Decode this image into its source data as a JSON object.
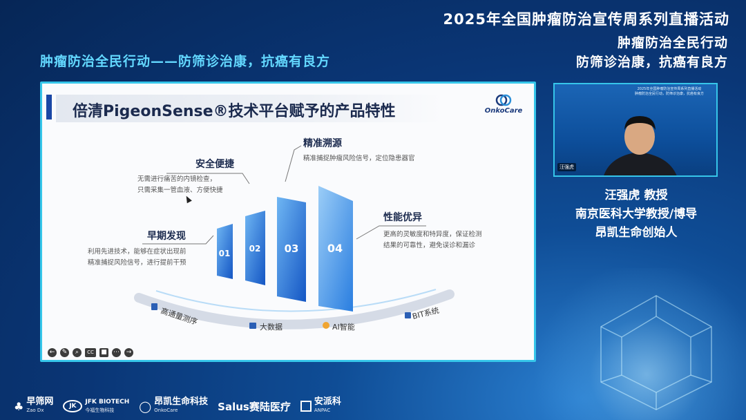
{
  "event": {
    "title": "2025年全国肿瘤防治宣传周系列直播活动",
    "subtitle_right_line1": "肿瘤防治全民行动",
    "subtitle_right_line2": "防筛诊治康，抗癌有良方",
    "subtitle_left": "肿瘤防治全民行动——防筛诊治康，抗癌有良方"
  },
  "slide": {
    "title": "倍清PigeonSense®技术平台赋予的产品特性",
    "logo_text": "OnkoCare",
    "features": [
      {
        "num": "01",
        "title": "早期发现",
        "desc_line1": "利用先进技术，能够在症状出现前",
        "desc_line2": "精准捕捉风险信号，进行提前干预"
      },
      {
        "num": "02",
        "title": "安全便捷",
        "desc_line1": "无需进行痛苦的内镜检查，",
        "desc_line2": "只需采集一管血液、方便快捷"
      },
      {
        "num": "03",
        "title": "精准溯源",
        "desc_line1": "精准捕捉肿瘤风险信号，定位隐患器官",
        "desc_line2": ""
      },
      {
        "num": "04",
        "title": "性能优异",
        "desc_line1": "更高的灵敏度和特异度，保证检测",
        "desc_line2": "结果的可靠性，避免误诊和漏诊"
      }
    ],
    "base_labels": [
      "高通量测序",
      "大数据",
      "AI智能",
      "BIT系统"
    ],
    "accent_color": "#1a6fd6"
  },
  "toolbar": {
    "icons": [
      "back-icon",
      "pen-icon",
      "zoom-icon",
      "cc-icon",
      "camera-icon",
      "more-icon",
      "forward-icon"
    ],
    "cc_label": "CC"
  },
  "video": {
    "banner_line1": "2025年全国肿瘤防治宣传周系列直播活动",
    "banner_line2": "肿瘤防治全民行动，防筛诊治康，抗癌有良方",
    "name_tag": "汪强虎"
  },
  "speaker": {
    "name": "汪强虎 教授",
    "title1": "南京医科大学教授/博导",
    "title2": "昂凯生命创始人"
  },
  "sponsors": [
    {
      "main": "早筛网",
      "sub": "Zao Dx"
    },
    {
      "main": "JFK BIOTECH",
      "sub": "今福生物科技"
    },
    {
      "main": "昂凯生命科技",
      "sub": "OnkoCare"
    },
    {
      "main": "Salus赛陆医疗",
      "sub": ""
    },
    {
      "main": "安派科",
      "sub": "ANPAC"
    }
  ]
}
